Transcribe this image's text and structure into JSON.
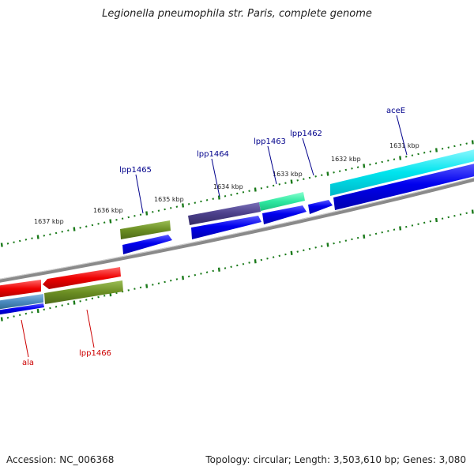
{
  "title": "Legionella pneumophila str. Paris, complete genome",
  "accession": "Accession: NC_006368",
  "summary": "Topology: circular; Length: 3,503,610 bp; Genes: 3,080",
  "scale_labels": [
    "1637 kbp",
    "1636 kbp",
    "1635 kbp",
    "1634 kbp",
    "1633 kbp",
    "1632 kbp",
    "1631 kbp"
  ],
  "genes": [
    {
      "label": "aceE",
      "color": "#00008b"
    },
    {
      "label": "lpp1462",
      "color": "#00008b"
    },
    {
      "label": "lpp1463",
      "color": "#00008b"
    },
    {
      "label": "lpp1464",
      "color": "#00008b"
    },
    {
      "label": "lpp1465",
      "color": "#00008b"
    },
    {
      "label": "lpp1466",
      "color": "#cc0000"
    },
    {
      "label": "ala",
      "color": "#cc0000"
    }
  ],
  "colors": {
    "backbone": "#8a8a8a",
    "tick": "#1a7a1a",
    "cds_blue": "#0000ee",
    "cyan": "#00e5ee",
    "teal": "#2ee8a0",
    "slate": "#4b3f8a",
    "olive": "#6b8e23",
    "red": "#ee0000",
    "steel": "#4a8ac0"
  }
}
